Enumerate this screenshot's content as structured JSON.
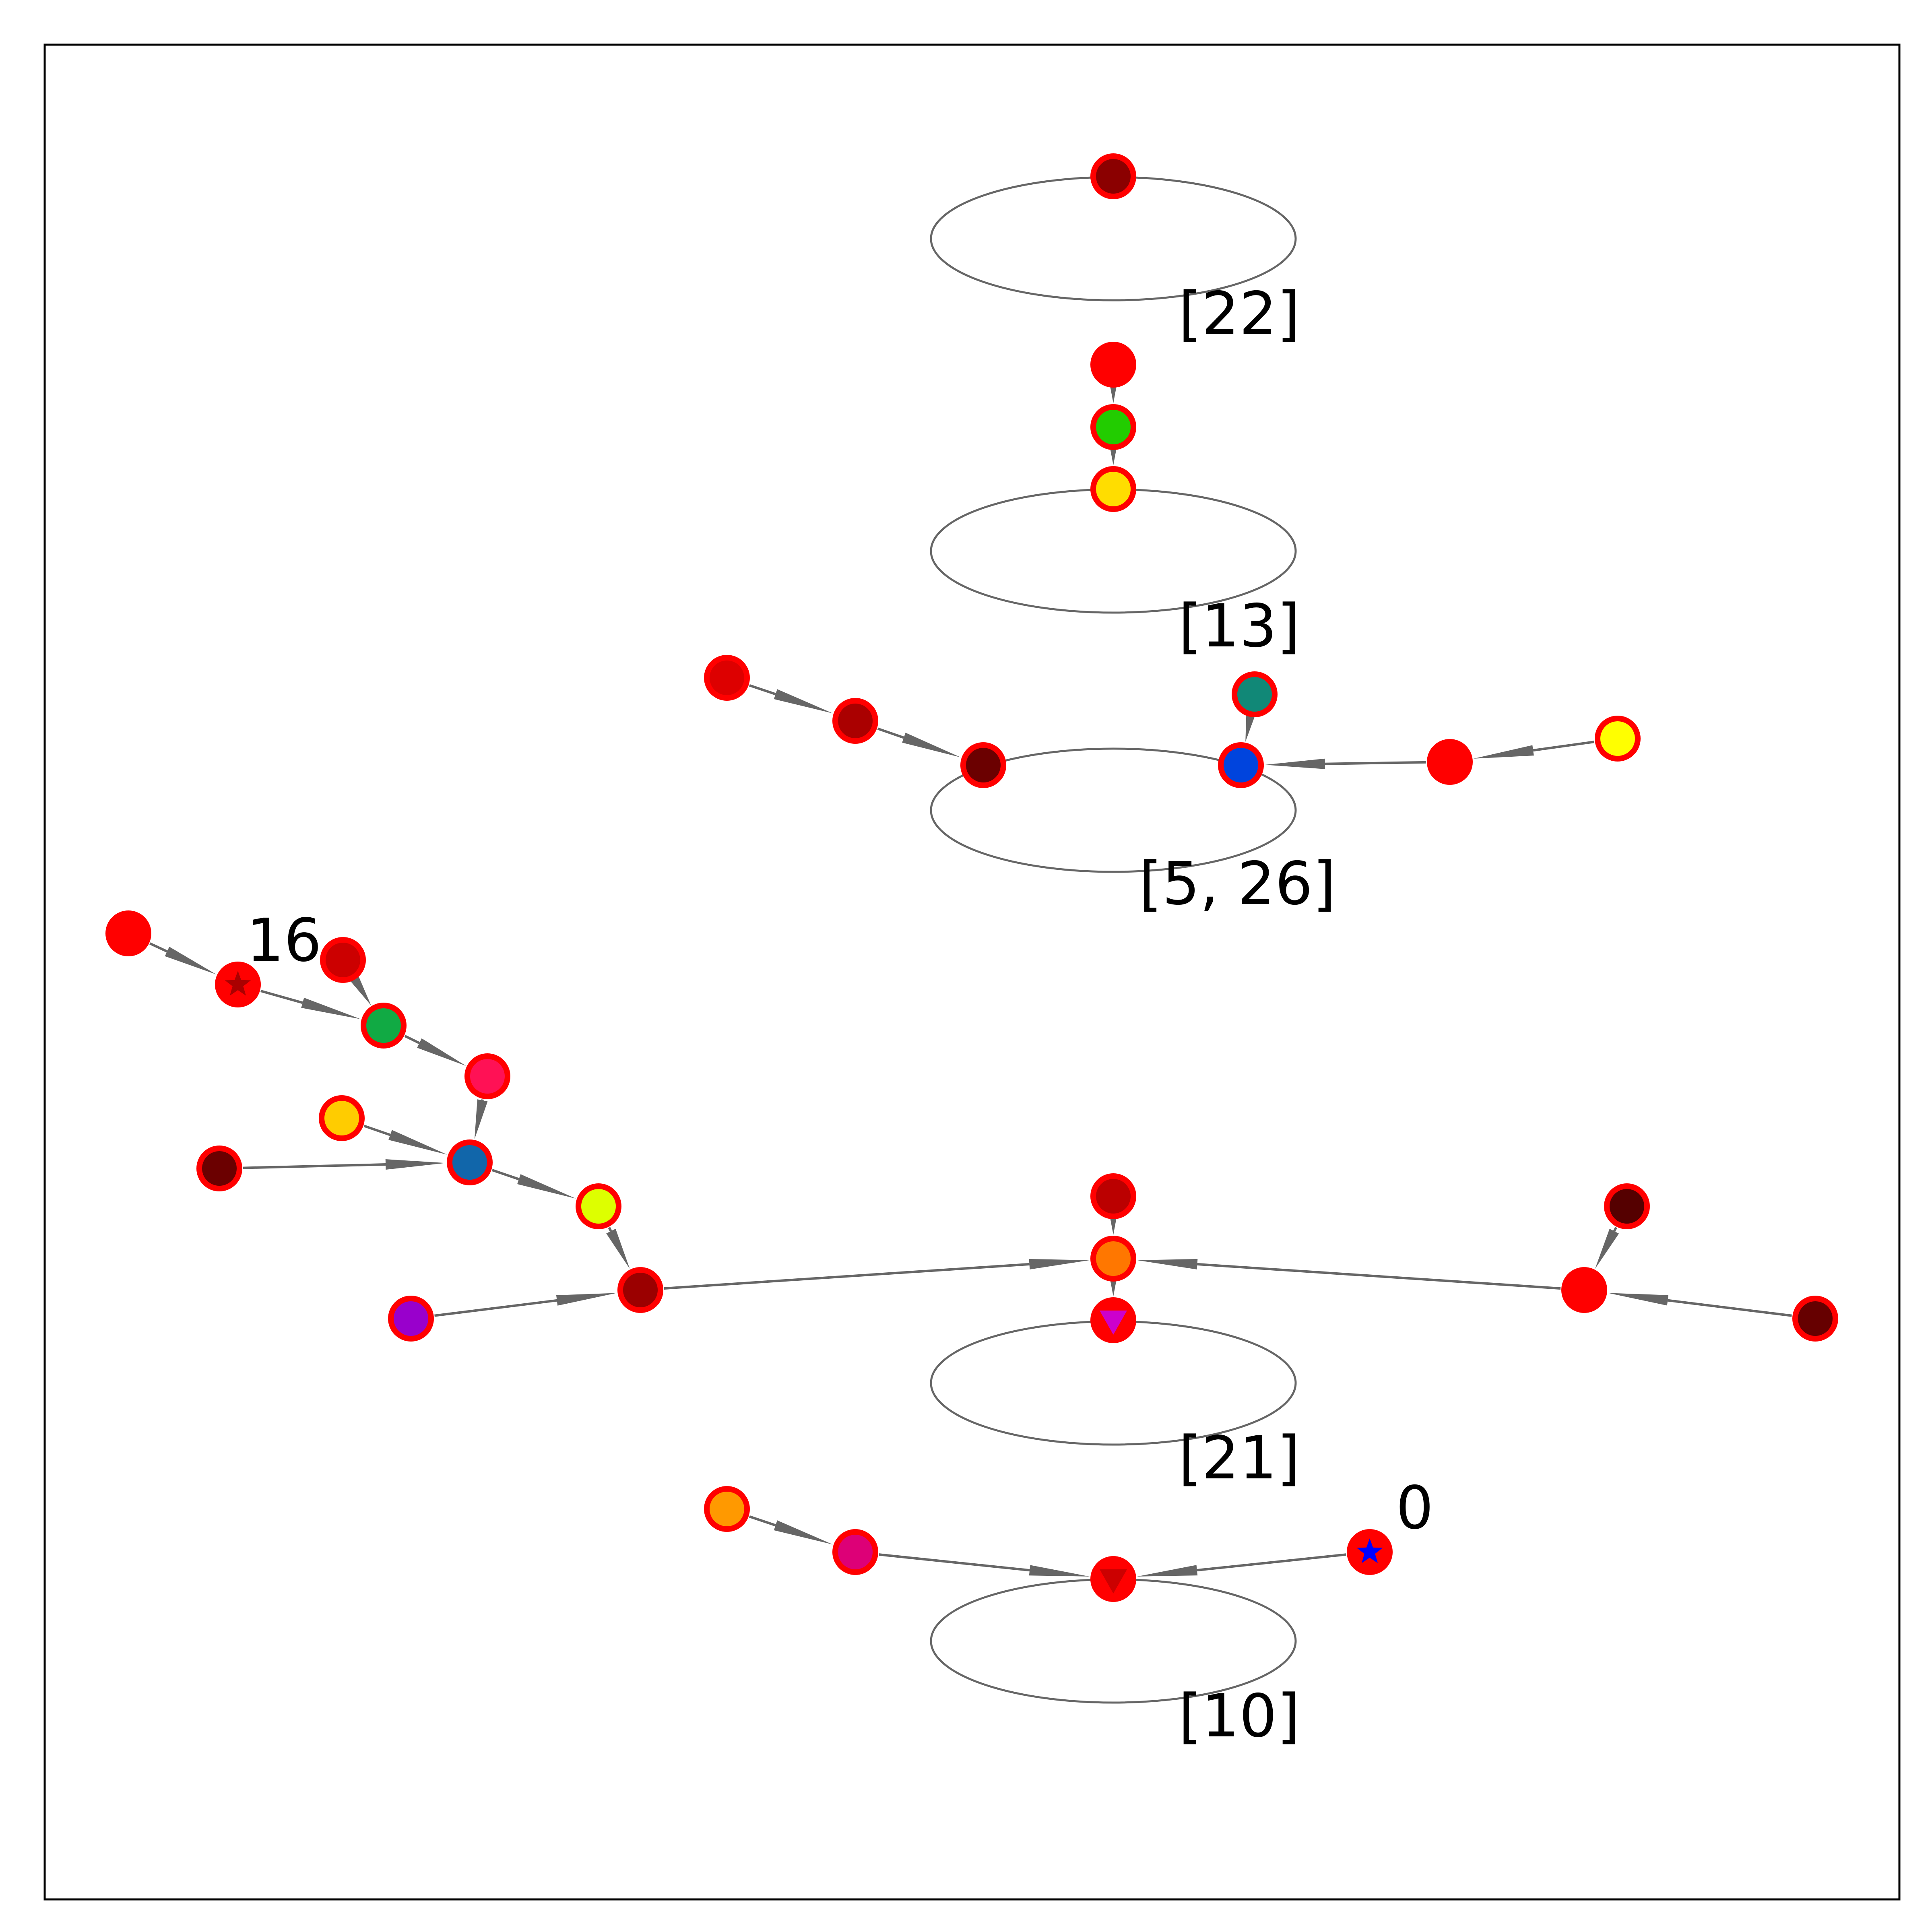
{
  "colors": {
    "edge": "#666666",
    "node_outline": "#ff0000",
    "frame": "#000000"
  },
  "cycle_labels": {
    "c22": "[22]",
    "c13": "[13]",
    "c5_26": "[5, 26]",
    "c21": "[21]",
    "c10": "[10]"
  },
  "node_labels": {
    "n16": "16",
    "n0": "0"
  },
  "nodes": {
    "a1": {
      "fill": "#8b0000"
    },
    "b1": {
      "fill": "#ff0000"
    },
    "b2": {
      "fill": "#22cc00"
    },
    "b3": {
      "fill": "#ffdd00"
    },
    "c1": {
      "fill": "#dd0000"
    },
    "c2": {
      "fill": "#aa0000"
    },
    "c3": {
      "fill": "#6b0000"
    },
    "c4": {
      "fill": "#0044dd"
    },
    "c5": {
      "fill": "#118877"
    },
    "c6": {
      "fill": "#ff0000"
    },
    "c7": {
      "fill": "#ffff00"
    },
    "d1": {
      "fill": "#ff0000"
    },
    "d2": {
      "fill": "#ff0000",
      "marker": "star",
      "marker_color": "#aa0000"
    },
    "d3": {
      "fill": "#cc0000"
    },
    "d4": {
      "fill": "#11aa44"
    },
    "d5": {
      "fill": "#ff1155"
    },
    "d6": {
      "fill": "#ffcc00"
    },
    "d7": {
      "fill": "#6b0000"
    },
    "d8": {
      "fill": "#1166aa"
    },
    "d9": {
      "fill": "#ddff00"
    },
    "d10": {
      "fill": "#9b0000"
    },
    "d11": {
      "fill": "#9900cc"
    },
    "e1": {
      "fill": "#bb0000"
    },
    "e2": {
      "fill": "#ff7700"
    },
    "e3": {
      "fill": "#ff0000",
      "marker": "triangle-down",
      "marker_color": "#cc00cc"
    },
    "e4": {
      "fill": "#550000"
    },
    "e5": {
      "fill": "#ff0000"
    },
    "e6": {
      "fill": "#660000"
    },
    "f1": {
      "fill": "#ff9900"
    },
    "f2": {
      "fill": "#dd0077"
    },
    "f3": {
      "fill": "#ff0000",
      "marker": "triangle-down",
      "marker_color": "#cc0000"
    },
    "f4": {
      "fill": "#ff0000",
      "marker": "star",
      "marker_color": "#0000ff"
    }
  }
}
